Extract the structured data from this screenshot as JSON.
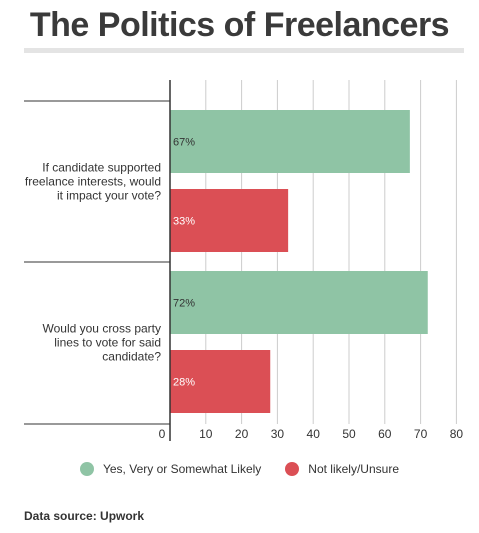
{
  "title": "The Politics of Freelancers",
  "source": "Data source: Upwork",
  "colors": {
    "likely": "#8fc4a5",
    "unlikely": "#db4f55",
    "grid": "#cccccc",
    "axis": "#333333"
  },
  "chart_data": {
    "type": "bar",
    "orientation": "horizontal",
    "categories": [
      [
        "If candidate supported",
        "freelance interests, would",
        "it impact your vote?"
      ],
      [
        "Would you cross party",
        "lines to vote for said",
        "candidate?"
      ]
    ],
    "series": [
      {
        "name": "Yes, Very or Somewhat Likely",
        "values": [
          67,
          72
        ],
        "labels": [
          "67%",
          "72%"
        ]
      },
      {
        "name": "Not likely/Unsure",
        "values": [
          33,
          28
        ],
        "labels": [
          "33%",
          "28%"
        ]
      }
    ],
    "xlim": [
      0,
      80
    ],
    "xticks": [
      0,
      10,
      20,
      30,
      40,
      50,
      60,
      70,
      80
    ],
    "grid": true,
    "legend_position": "bottom"
  }
}
